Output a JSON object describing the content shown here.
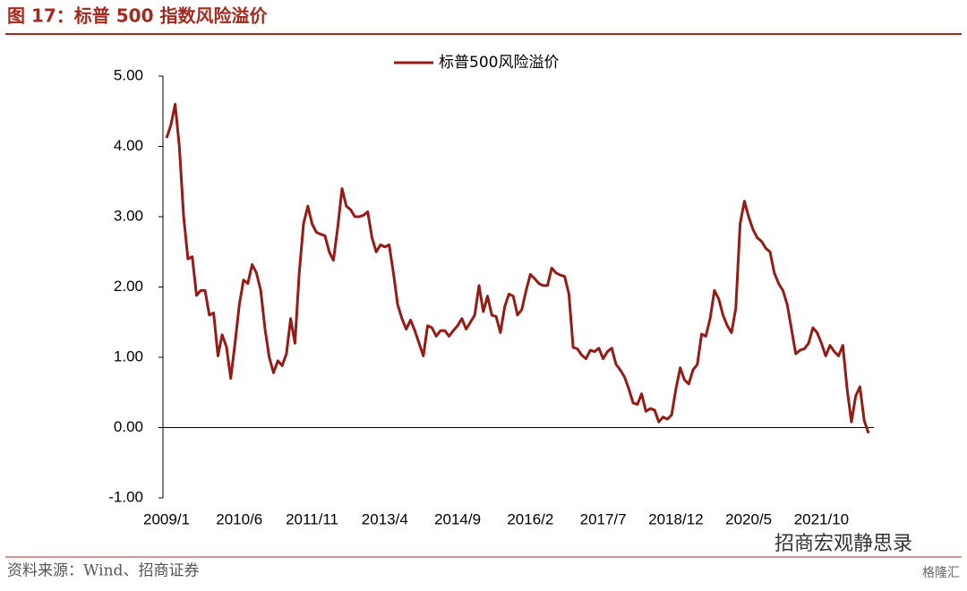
{
  "chart_data": {
    "type": "line",
    "title": "图 17：标普 500 指数风险溢价",
    "source": "资料来源：Wind、招商证券",
    "watermark": "招商宏观静思录",
    "logo": "格隆汇",
    "categories": [
      "2009/1",
      null,
      null,
      null,
      null,
      null,
      null,
      null,
      null,
      null,
      null,
      null,
      null,
      null,
      null,
      null,
      null,
      "2010/6",
      null,
      null,
      null,
      null,
      null,
      null,
      null,
      null,
      null,
      null,
      null,
      null,
      null,
      null,
      null,
      null,
      "2011/11",
      null,
      null,
      null,
      null,
      null,
      null,
      null,
      null,
      null,
      null,
      null,
      null,
      null,
      null,
      null,
      null,
      "2013/4",
      null,
      null,
      null,
      null,
      null,
      null,
      null,
      null,
      null,
      null,
      null,
      null,
      null,
      null,
      null,
      null,
      "2014/9",
      null,
      null,
      null,
      null,
      null,
      null,
      null,
      null,
      null,
      null,
      null,
      null,
      null,
      null,
      null,
      null,
      "2016/2",
      null,
      null,
      null,
      null,
      null,
      null,
      null,
      null,
      null,
      null,
      null,
      null,
      null,
      null,
      null,
      null,
      "2017/7",
      null,
      null,
      null,
      null,
      null,
      null,
      null,
      null,
      null,
      null,
      null,
      null,
      null,
      null,
      null,
      null,
      "2018/12",
      null,
      null,
      null,
      null,
      null,
      null,
      null,
      null,
      null,
      null,
      null,
      null,
      null,
      null,
      null,
      null,
      "2020/5",
      null,
      null,
      null,
      null,
      null,
      null,
      null,
      null,
      null,
      null,
      null,
      null,
      null,
      null,
      null,
      null,
      "2021/10",
      null,
      null,
      null,
      null,
      null,
      null,
      null,
      null,
      null,
      null,
      null
    ],
    "series": [
      {
        "name": "标普500风险溢价",
        "color": "#951b17",
        "values": [
          4.12,
          4.3,
          4.6,
          4.0,
          3.0,
          2.4,
          2.43,
          1.88,
          1.95,
          1.95,
          1.6,
          1.63,
          1.02,
          1.32,
          1.15,
          0.7,
          1.2,
          1.75,
          2.1,
          2.05,
          2.32,
          2.2,
          1.95,
          1.4,
          1.0,
          0.78,
          0.95,
          0.88,
          1.05,
          1.55,
          1.2,
          2.2,
          2.9,
          3.15,
          2.9,
          2.78,
          2.75,
          2.73,
          2.5,
          2.38,
          2.85,
          3.4,
          3.15,
          3.1,
          3.0,
          3.0,
          3.02,
          3.07,
          2.7,
          2.5,
          2.6,
          2.57,
          2.6,
          2.2,
          1.75,
          1.55,
          1.4,
          1.53,
          1.38,
          1.2,
          1.02,
          1.45,
          1.42,
          1.3,
          1.38,
          1.38,
          1.3,
          1.38,
          1.45,
          1.55,
          1.4,
          1.5,
          1.6,
          2.02,
          1.65,
          1.87,
          1.6,
          1.58,
          1.35,
          1.72,
          1.9,
          1.87,
          1.6,
          1.68,
          1.95,
          2.18,
          2.12,
          2.05,
          2.02,
          2.02,
          2.27,
          2.2,
          2.17,
          2.15,
          1.9,
          1.14,
          1.12,
          1.03,
          0.98,
          1.1,
          1.08,
          1.13,
          0.98,
          1.08,
          1.13,
          0.9,
          0.82,
          0.72,
          0.55,
          0.35,
          0.33,
          0.48,
          0.23,
          0.27,
          0.25,
          0.08,
          0.15,
          0.12,
          0.18,
          0.55,
          0.85,
          0.68,
          0.62,
          0.82,
          0.9,
          1.33,
          1.3,
          1.55,
          1.95,
          1.83,
          1.6,
          1.45,
          1.35,
          1.7,
          2.9,
          3.22,
          3.0,
          2.82,
          2.7,
          2.65,
          2.55,
          2.5,
          2.2,
          2.05,
          1.95,
          1.75,
          1.4,
          1.05,
          1.1,
          1.12,
          1.2,
          1.42,
          1.35,
          1.2,
          1.02,
          1.17,
          1.08,
          1.02,
          1.17,
          0.55,
          0.08,
          0.45,
          0.58,
          0.1,
          -0.08
        ]
      }
    ],
    "ylim": [
      -1,
      5
    ],
    "yticks": [
      {
        "value": -1,
        "label": "-1.00"
      },
      {
        "value": 0,
        "label": "0.00"
      },
      {
        "value": 1,
        "label": "1.00"
      },
      {
        "value": 2,
        "label": "2.00"
      },
      {
        "value": 3,
        "label": "3.00"
      },
      {
        "value": 4,
        "label": "4.00"
      },
      {
        "value": 5,
        "label": "5.00"
      }
    ],
    "legend": "top"
  }
}
